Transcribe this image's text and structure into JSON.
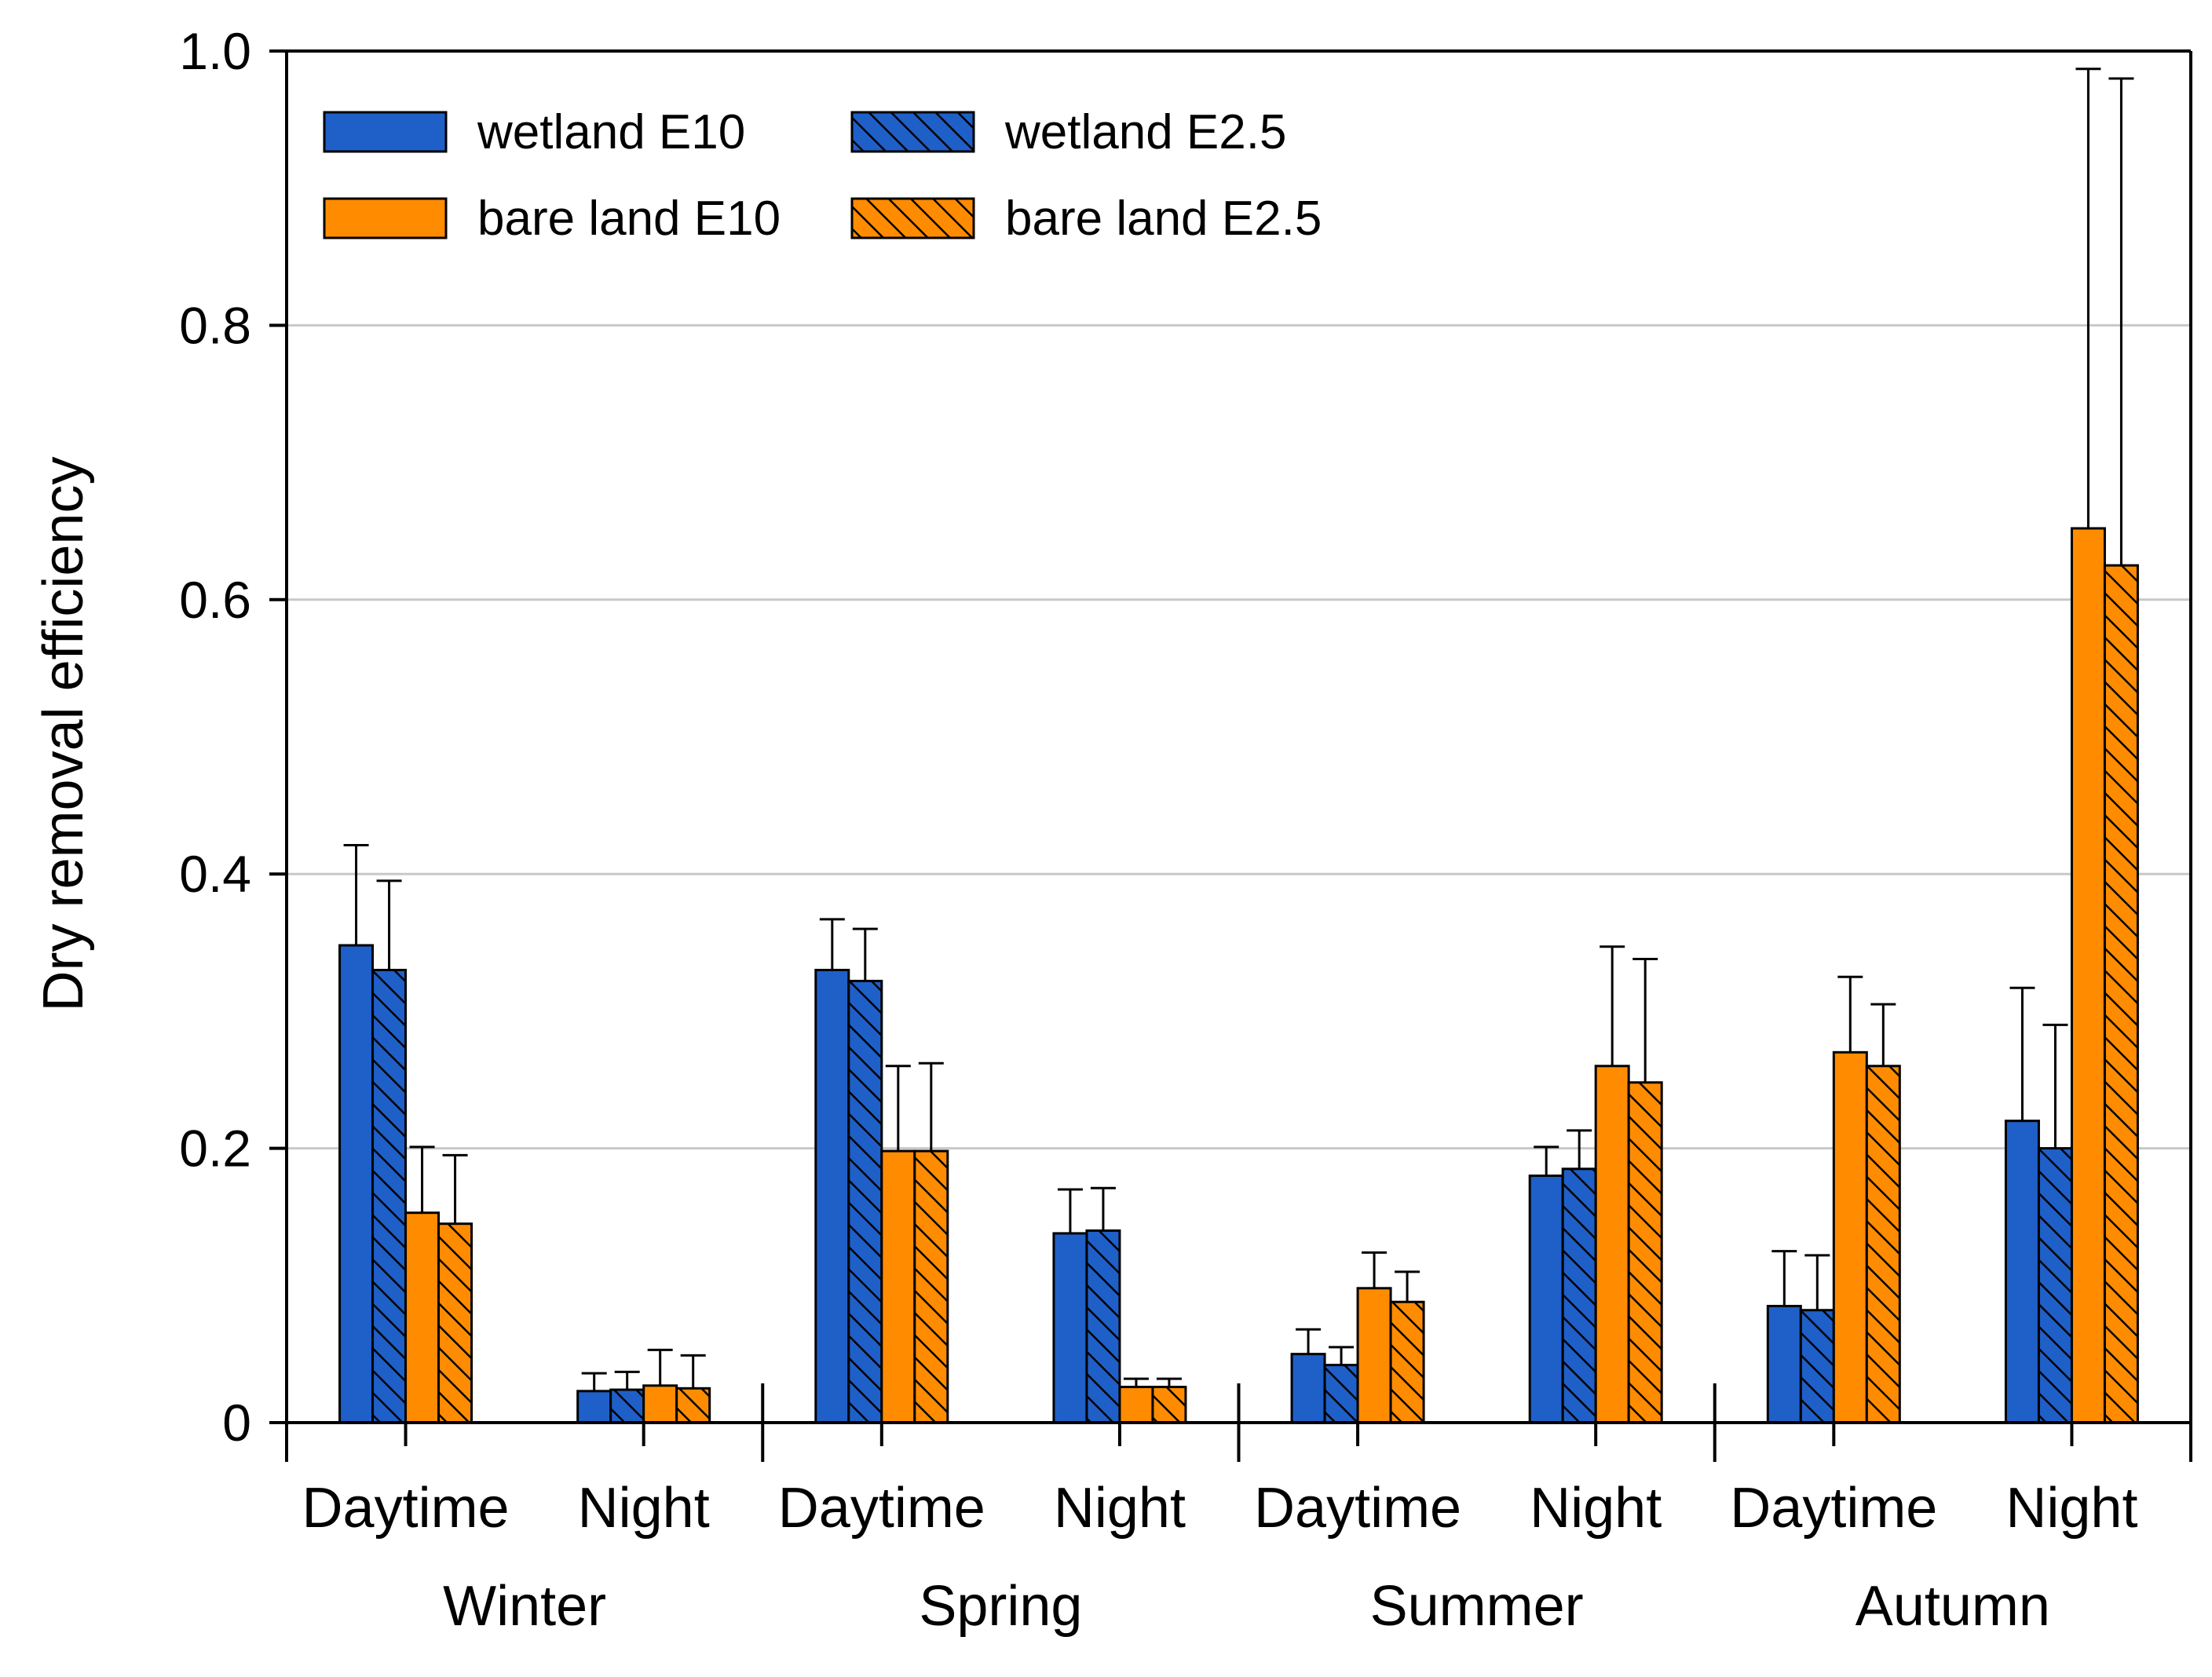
{
  "chart_data": {
    "type": "bar",
    "title": "",
    "xlabel": "",
    "ylabel": "Dry removal efficiency",
    "ylim": [
      0,
      1.0
    ],
    "yticks": [
      0,
      0.2,
      0.4,
      0.6,
      0.8,
      1.0
    ],
    "ytick_labels": [
      "0",
      "0.2",
      "0.4",
      "0.6",
      "0.8",
      "1.0"
    ],
    "grid": "horizontal",
    "legend_position": "top-left",
    "groups": [
      "Winter",
      "Spring",
      "Summer",
      "Autumn"
    ],
    "categories": [
      "Daytime",
      "Night",
      "Daytime",
      "Night",
      "Daytime",
      "Night",
      "Daytime",
      "Night"
    ],
    "series": [
      {
        "name": "wetland E10",
        "color": "#1f5fc8",
        "hatch": false,
        "values": [
          0.348,
          0.023,
          0.33,
          0.138,
          0.05,
          0.18,
          0.085,
          0.22
        ],
        "errors": [
          0.073,
          0.013,
          0.037,
          0.032,
          0.018,
          0.021,
          0.04,
          0.097
        ]
      },
      {
        "name": "wetland E2.5",
        "color": "#1f5fc8",
        "hatch": true,
        "values": [
          0.33,
          0.024,
          0.322,
          0.14,
          0.042,
          0.185,
          0.082,
          0.2
        ],
        "errors": [
          0.065,
          0.013,
          0.038,
          0.031,
          0.013,
          0.028,
          0.04,
          0.09
        ]
      },
      {
        "name": "bare land E10",
        "color": "#ff8c00",
        "hatch": false,
        "values": [
          0.153,
          0.027,
          0.198,
          0.026,
          0.098,
          0.26,
          0.27,
          0.652
        ],
        "errors": [
          0.048,
          0.026,
          0.062,
          0.006,
          0.026,
          0.087,
          0.055,
          0.335
        ]
      },
      {
        "name": "bare land E2.5",
        "color": "#ff8c00",
        "hatch": true,
        "values": [
          0.145,
          0.025,
          0.198,
          0.026,
          0.088,
          0.248,
          0.26,
          0.625
        ],
        "errors": [
          0.05,
          0.024,
          0.064,
          0.006,
          0.022,
          0.09,
          0.045,
          0.355
        ]
      }
    ]
  }
}
